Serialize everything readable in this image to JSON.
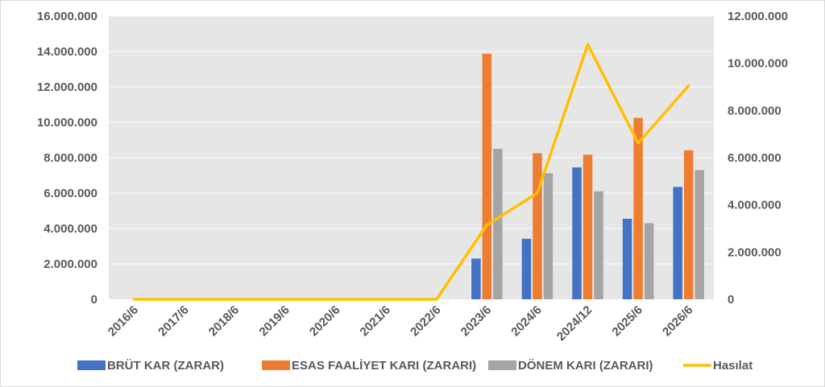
{
  "chart_data": {
    "type": "bar",
    "categories": [
      "2016/6",
      "2017/6",
      "2018/6",
      "2019/6",
      "2020/6",
      "2021/6",
      "2022/6",
      "2023/6",
      "2024/6",
      "2024/12",
      "2025/6",
      "2026/6"
    ],
    "series": [
      {
        "name": "BRÜT KAR (ZARAR)",
        "type": "bar",
        "axis": "left",
        "color": "#4472c4",
        "values": [
          0,
          0,
          0,
          0,
          0,
          0,
          0,
          2300000,
          3420000,
          7450000,
          4550000,
          6350000
        ]
      },
      {
        "name": "ESAS FAALİYET KARI (ZARARI)",
        "type": "bar",
        "axis": "left",
        "color": "#ed7d31",
        "values": [
          0,
          0,
          0,
          0,
          0,
          0,
          0,
          13870000,
          8250000,
          8170000,
          10250000,
          8420000
        ]
      },
      {
        "name": "DÖNEM KARI (ZARARI)",
        "type": "bar",
        "axis": "left",
        "color": "#a5a5a5",
        "values": [
          0,
          0,
          0,
          0,
          0,
          0,
          0,
          8500000,
          7120000,
          6100000,
          4300000,
          7300000
        ]
      },
      {
        "name": "Hasılat",
        "type": "line",
        "axis": "right",
        "color": "#ffc000",
        "values": [
          0,
          0,
          0,
          0,
          0,
          0,
          0,
          3150000,
          4500000,
          10800000,
          6620000,
          9050000
        ]
      }
    ],
    "y_left": {
      "min": 0,
      "max": 16000000,
      "step": 2000000,
      "tick_labels": [
        "0",
        "2.000.000",
        "4.000.000",
        "6.000.000",
        "8.000.000",
        "10.000.000",
        "12.000.000",
        "14.000.000",
        "16.000.000"
      ]
    },
    "y_right": {
      "min": 0,
      "max": 12000000,
      "step": 2000000,
      "tick_labels": [
        "0",
        "2.000.000",
        "4.000.000",
        "6.000.000",
        "8.000.000",
        "10.000.000",
        "12.000.000"
      ]
    },
    "grid": true,
    "plot_background": "#e7e6e6",
    "legend_position": "bottom"
  }
}
